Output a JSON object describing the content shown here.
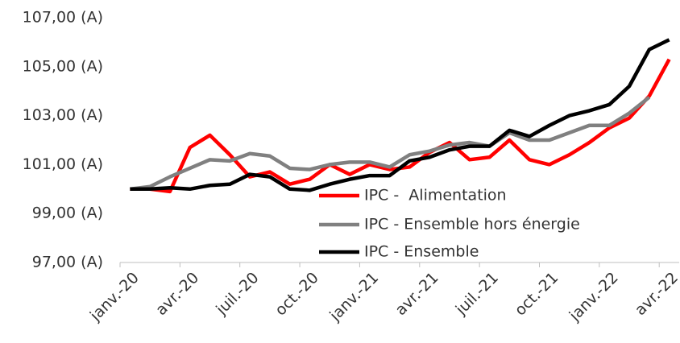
{
  "chart_data": {
    "type": "line",
    "categories": [
      "janv.-20",
      null,
      null,
      "avr.-20",
      null,
      null,
      "juil.-20",
      null,
      null,
      "oct.-20",
      null,
      null,
      "janv.-21",
      null,
      null,
      "avr.-21",
      null,
      null,
      "juil.-21",
      null,
      null,
      "oct.-21",
      null,
      null,
      "janv.-22",
      null,
      null,
      "avr.-22"
    ],
    "series": [
      {
        "name": "IPC -  Alimentation",
        "color": "#ff0000",
        "values": [
          100.0,
          100.0,
          99.9,
          101.7,
          102.2,
          101.4,
          100.5,
          100.7,
          100.2,
          100.4,
          101.0,
          100.6,
          101.0,
          100.8,
          100.9,
          101.5,
          101.9,
          101.2,
          101.3,
          102.0,
          101.2,
          101.0,
          101.4,
          101.9,
          102.5,
          102.9,
          103.8,
          105.3
        ]
      },
      {
        "name": "IPC - Ensemble hors énergie",
        "color": "#808080",
        "values": [
          100.0,
          100.1,
          100.5,
          100.85,
          101.2,
          101.15,
          101.45,
          101.35,
          100.85,
          100.8,
          101.0,
          101.1,
          101.1,
          100.9,
          101.4,
          101.55,
          101.8,
          101.9,
          101.75,
          102.3,
          102.0,
          102.0,
          102.3,
          102.6,
          102.6,
          103.1,
          103.75,
          null
        ]
      },
      {
        "name": "IPC - Ensemble",
        "color": "#000000",
        "values": [
          100.0,
          100.0,
          100.05,
          100.0,
          100.15,
          100.2,
          100.6,
          100.5,
          100.0,
          99.95,
          100.2,
          100.4,
          100.55,
          100.55,
          101.15,
          101.3,
          101.6,
          101.75,
          101.75,
          102.4,
          102.15,
          102.6,
          103.0,
          103.2,
          103.45,
          104.2,
          105.7,
          106.1
        ]
      }
    ],
    "ylim": [
      97,
      107
    ],
    "yticks": [
      {
        "value": 97,
        "label": "97,00 (A)"
      },
      {
        "value": 99,
        "label": "99,00 (A)"
      },
      {
        "value": 101,
        "label": "101,00 (A)"
      },
      {
        "value": 103,
        "label": "103,00 (A)"
      },
      {
        "value": 105,
        "label": "105,00 (A)"
      },
      {
        "value": 107,
        "label": "107,00 (A)"
      }
    ],
    "grid": false,
    "legend_position": "center"
  }
}
